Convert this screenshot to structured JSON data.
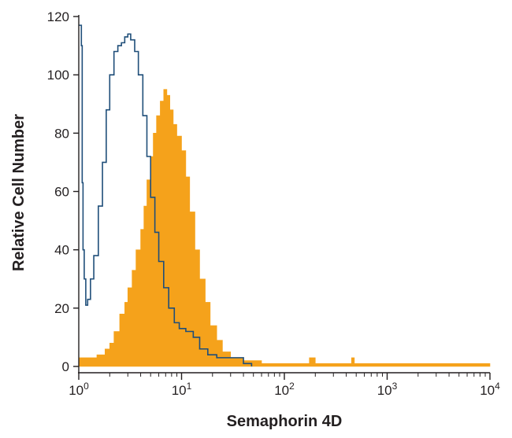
{
  "chart_data": {
    "type": "area",
    "xlabel": "Semaphorin 4D",
    "ylabel": "Relative Cell Number",
    "x_scale": "log",
    "xlim": [
      1,
      10000
    ],
    "ylim": [
      0,
      120
    ],
    "y_ticks": [
      {
        "value": 0,
        "label": "0"
      },
      {
        "value": 20,
        "label": "20"
      },
      {
        "value": 40,
        "label": "40"
      },
      {
        "value": 60,
        "label": "60"
      },
      {
        "value": 80,
        "label": "80"
      },
      {
        "value": 100,
        "label": "100"
      },
      {
        "value": 120,
        "label": "120"
      }
    ],
    "x_ticks": [
      {
        "value": 1,
        "base": "10",
        "exp": "0"
      },
      {
        "value": 10,
        "base": "10",
        "exp": "1"
      },
      {
        "value": 100,
        "base": "10",
        "exp": "2"
      },
      {
        "value": 1000,
        "base": "10",
        "exp": "3"
      },
      {
        "value": 10000,
        "base": "10",
        "exp": "4"
      }
    ],
    "grid": false,
    "legend": "none",
    "series": [
      {
        "style": "filled",
        "color": "#f5a21b",
        "points": [
          [
            1,
            3
          ],
          [
            1.2,
            3
          ],
          [
            1.5,
            4
          ],
          [
            1.8,
            6
          ],
          [
            2.0,
            8
          ],
          [
            2.2,
            12
          ],
          [
            2.5,
            18
          ],
          [
            2.8,
            22
          ],
          [
            3.0,
            27
          ],
          [
            3.3,
            33
          ],
          [
            3.6,
            40
          ],
          [
            4.0,
            47
          ],
          [
            4.3,
            55
          ],
          [
            4.6,
            64
          ],
          [
            5.0,
            72
          ],
          [
            5.3,
            80
          ],
          [
            5.7,
            86
          ],
          [
            6.2,
            91
          ],
          [
            6.7,
            95
          ],
          [
            7.2,
            93
          ],
          [
            7.7,
            88
          ],
          [
            8.3,
            83
          ],
          [
            9.0,
            79
          ],
          [
            10.0,
            74
          ],
          [
            11.0,
            65
          ],
          [
            12.0,
            53
          ],
          [
            13.5,
            40
          ],
          [
            15.0,
            30
          ],
          [
            17.0,
            22
          ],
          [
            19.0,
            14
          ],
          [
            22.0,
            9
          ],
          [
            25.0,
            5
          ],
          [
            30.0,
            3
          ],
          [
            40.0,
            2
          ],
          [
            60.0,
            1
          ],
          [
            100,
            1
          ],
          [
            150,
            1
          ],
          [
            175,
            3
          ],
          [
            200,
            1
          ],
          [
            300,
            1
          ],
          [
            420,
            1
          ],
          [
            450,
            3
          ],
          [
            480,
            1
          ],
          [
            1000,
            1
          ],
          [
            3000,
            1
          ],
          [
            10000,
            1
          ]
        ]
      },
      {
        "style": "outline",
        "color": "#1f4e79",
        "points": [
          [
            1.0,
            117
          ],
          [
            1.03,
            117
          ],
          [
            1.06,
            110
          ],
          [
            1.08,
            63
          ],
          [
            1.1,
            40
          ],
          [
            1.13,
            30
          ],
          [
            1.17,
            21
          ],
          [
            1.22,
            23
          ],
          [
            1.3,
            30
          ],
          [
            1.4,
            38
          ],
          [
            1.55,
            55
          ],
          [
            1.7,
            70
          ],
          [
            1.85,
            88
          ],
          [
            2.0,
            100
          ],
          [
            2.2,
            108
          ],
          [
            2.4,
            110
          ],
          [
            2.6,
            111
          ],
          [
            2.8,
            113
          ],
          [
            3.0,
            114
          ],
          [
            3.2,
            112
          ],
          [
            3.5,
            108
          ],
          [
            3.8,
            100
          ],
          [
            4.2,
            86
          ],
          [
            4.6,
            72
          ],
          [
            5.0,
            58
          ],
          [
            5.5,
            46
          ],
          [
            6.0,
            36
          ],
          [
            6.7,
            27
          ],
          [
            7.5,
            20
          ],
          [
            8.5,
            15
          ],
          [
            9.5,
            13
          ],
          [
            11.0,
            12
          ],
          [
            13.0,
            10
          ],
          [
            15.0,
            6
          ],
          [
            18.0,
            4
          ],
          [
            22.0,
            3
          ],
          [
            27.0,
            3
          ],
          [
            35.0,
            3
          ],
          [
            40.0,
            1
          ],
          [
            48.0,
            0
          ]
        ]
      }
    ]
  }
}
